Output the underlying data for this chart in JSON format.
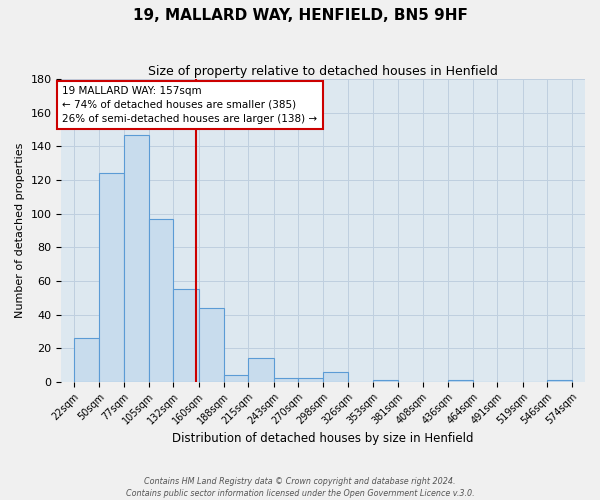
{
  "title": "19, MALLARD WAY, HENFIELD, BN5 9HF",
  "subtitle": "Size of property relative to detached houses in Henfield",
  "xlabel": "Distribution of detached houses by size in Henfield",
  "ylabel": "Number of detached properties",
  "bin_edges": [
    22,
    50,
    77,
    105,
    132,
    160,
    188,
    215,
    243,
    270,
    298,
    326,
    353,
    381,
    408,
    436,
    464,
    491,
    519,
    546,
    574
  ],
  "bar_heights": [
    26,
    124,
    147,
    97,
    55,
    44,
    4,
    14,
    2,
    2,
    6,
    0,
    1,
    0,
    0,
    1,
    0,
    0,
    0,
    1
  ],
  "bar_color": "#c8dced",
  "bar_edge_color": "#5b9bd5",
  "property_line_x": 157,
  "property_line_color": "#cc0000",
  "annotation_title": "19 MALLARD WAY: 157sqm",
  "annotation_line1": "← 74% of detached houses are smaller (385)",
  "annotation_line2": "26% of semi-detached houses are larger (138) →",
  "annotation_box_color": "#cc0000",
  "ylim": [
    0,
    180
  ],
  "yticks": [
    0,
    20,
    40,
    60,
    80,
    100,
    120,
    140,
    160,
    180
  ],
  "grid_color": "#bfcfdf",
  "bg_color": "#dde8f0",
  "fig_bg_color": "#f0f0f0",
  "footer1": "Contains HM Land Registry data © Crown copyright and database right 2024.",
  "footer2": "Contains public sector information licensed under the Open Government Licence v.3.0."
}
